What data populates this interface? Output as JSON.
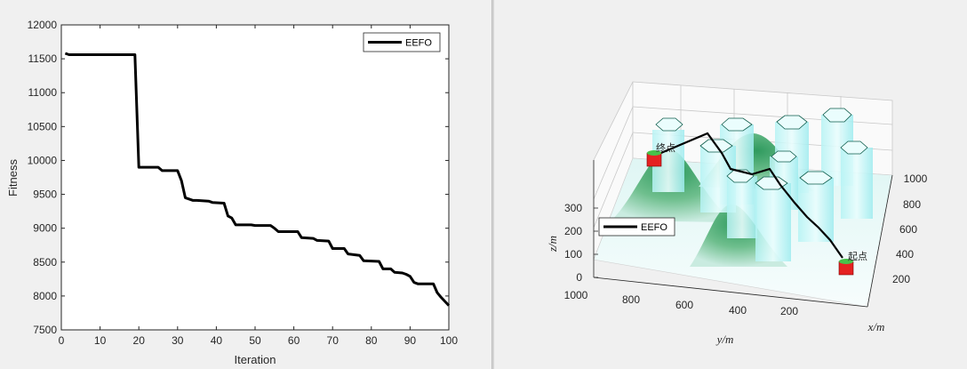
{
  "chart_data": [
    {
      "type": "line",
      "xlabel": "Iteration",
      "ylabel": "Fitness",
      "xlim": [
        0,
        100
      ],
      "ylim": [
        7500,
        12000
      ],
      "xticks": [
        0,
        10,
        20,
        30,
        40,
        50,
        60,
        70,
        80,
        90,
        100
      ],
      "yticks": [
        7500,
        8000,
        8500,
        9000,
        9500,
        10000,
        10500,
        11000,
        11500,
        12000
      ],
      "legend": "top-right",
      "series": [
        {
          "name": "EEFO",
          "color": "#000000",
          "x": [
            1,
            2,
            19,
            20,
            25,
            26,
            30,
            31,
            32,
            33,
            34,
            35,
            38,
            39,
            42,
            43,
            44,
            45,
            46,
            49,
            50,
            54,
            55,
            56,
            57,
            61,
            62,
            65,
            66,
            69,
            70,
            73,
            74,
            77,
            78,
            82,
            83,
            85,
            86,
            88,
            89,
            90,
            91,
            92,
            96,
            97,
            98,
            100
          ],
          "values": [
            11580,
            11560,
            11560,
            9900,
            9900,
            9850,
            9850,
            9700,
            9450,
            9430,
            9410,
            9410,
            9400,
            9380,
            9370,
            9180,
            9150,
            9050,
            9050,
            9050,
            9040,
            9040,
            9000,
            8950,
            8950,
            8950,
            8860,
            8850,
            8820,
            8810,
            8700,
            8700,
            8620,
            8600,
            8520,
            8510,
            8400,
            8400,
            8350,
            8340,
            8320,
            8290,
            8200,
            8180,
            8180,
            8050,
            7980,
            7860
          ]
        }
      ]
    },
    {
      "type": "surface-3d",
      "xlabel": "x/m",
      "ylabel": "y/m",
      "zlabel": "z/m",
      "zticks": [
        0,
        100,
        200,
        300
      ],
      "xticks": [
        200,
        400,
        600,
        800,
        1000
      ],
      "yticks": [
        1000,
        800,
        600,
        400,
        200
      ],
      "legend": "left",
      "series": [
        {
          "name": "EEFO",
          "color": "#000000"
        }
      ],
      "start_label": "起点",
      "end_label": "终点"
    }
  ]
}
